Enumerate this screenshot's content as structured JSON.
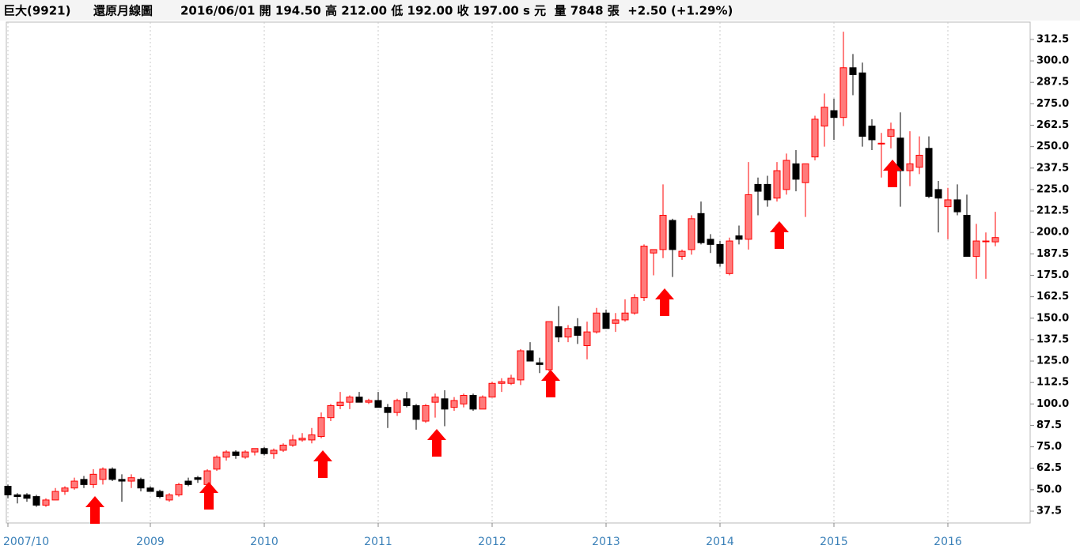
{
  "chart_data": {
    "type": "candlestick",
    "title": "巨大(9921)",
    "subtitle": "還原月線圖",
    "info": "2016/06/01 開 194.50 高 212.00 低 192.00 收 197.00 s 元  量 7848 張  +2.50 (+1.29%)",
    "categories": [
      "2007/10",
      null,
      null,
      null,
      null,
      null,
      null,
      null,
      null,
      null,
      null,
      null,
      null,
      null,
      null,
      "2009",
      null,
      null,
      null,
      null,
      null,
      null,
      null,
      null,
      null,
      null,
      null,
      "2010",
      null,
      null,
      null,
      null,
      null,
      null,
      null,
      null,
      null,
      null,
      null,
      "2011",
      null,
      null,
      null,
      null,
      null,
      null,
      null,
      null,
      null,
      null,
      null,
      "2012",
      null,
      null,
      null,
      null,
      null,
      null,
      null,
      null,
      null,
      null,
      null,
      "2013",
      null,
      null,
      null,
      null,
      null,
      null,
      null,
      null,
      null,
      null,
      null,
      "2014",
      null,
      null,
      null,
      null,
      null,
      null,
      null,
      null,
      null,
      null,
      null,
      "2015",
      null,
      null,
      null,
      null,
      null,
      null,
      null,
      null,
      null,
      null,
      null,
      "2016",
      null,
      null,
      null,
      null,
      null
    ],
    "open": [
      52,
      47,
      47,
      46,
      41,
      44,
      49,
      51,
      56,
      53,
      56,
      62,
      56,
      55,
      56,
      51,
      49,
      44,
      47,
      55,
      57,
      53,
      62,
      69,
      72,
      69,
      72,
      74,
      71,
      73,
      76,
      79,
      79,
      81,
      92,
      99,
      101,
      104,
      101,
      102,
      98,
      95,
      103,
      99,
      90,
      101,
      103,
      98,
      100,
      105,
      97,
      104,
      112,
      112,
      114,
      131,
      124,
      120,
      145,
      139,
      145,
      134,
      142,
      153,
      147,
      149,
      153,
      162,
      188,
      190,
      207,
      186,
      190,
      211,
      196,
      193,
      176,
      198,
      196,
      228,
      228,
      220,
      225,
      240,
      229,
      244,
      262,
      271,
      267,
      296,
      293,
      262,
      252,
      256,
      255,
      236,
      238,
      249,
      225,
      215,
      219,
      210,
      186,
      195,
      194.5
    ],
    "high": [
      53,
      48,
      48,
      47,
      45,
      51,
      52,
      57,
      58,
      62,
      63,
      63,
      59,
      59,
      57,
      52,
      50,
      48,
      54,
      57,
      58,
      62,
      70,
      73,
      73,
      73,
      74,
      75,
      74,
      77,
      82,
      83,
      86,
      95,
      100,
      107,
      105,
      107,
      103,
      107,
      100,
      103,
      107,
      100,
      100,
      106,
      108,
      104,
      106,
      106,
      105,
      113,
      115,
      117,
      132,
      136,
      127,
      148,
      157,
      146,
      150,
      148,
      156,
      155,
      153,
      161,
      164,
      193,
      190,
      228,
      208,
      190,
      210,
      218,
      199,
      195,
      197,
      204,
      241,
      232,
      233,
      241,
      246,
      248,
      240,
      268,
      281,
      278,
      317,
      304,
      299,
      266,
      258,
      264,
      270,
      259,
      256,
      256,
      230,
      226,
      228,
      222,
      205,
      200,
      212
    ],
    "low": [
      45,
      42,
      43,
      40,
      40,
      44,
      47,
      50,
      51,
      51,
      53,
      55,
      43,
      51,
      49,
      49,
      45,
      43,
      46,
      52,
      54,
      52,
      61,
      67,
      68,
      68,
      70,
      70,
      68,
      72,
      75,
      78,
      77,
      80,
      90,
      97,
      97,
      101,
      100,
      98,
      86,
      93,
      98,
      85,
      89,
      92,
      87,
      96,
      98,
      96,
      97,
      104,
      107,
      111,
      111,
      125,
      118,
      119,
      136,
      136,
      135,
      126,
      141,
      144,
      142,
      148,
      152,
      160,
      175,
      185,
      174,
      184,
      187,
      193,
      188,
      180,
      175,
      193,
      190,
      210,
      215,
      218,
      222,
      224,
      209,
      242,
      250,
      254,
      262,
      280,
      250,
      248,
      232,
      249,
      215,
      227,
      234,
      220,
      200,
      196,
      210,
      186,
      173,
      173,
      192
    ],
    "close": [
      47,
      46,
      45,
      41,
      44,
      49,
      51,
      55,
      53,
      59,
      62,
      56,
      55,
      57,
      51,
      49,
      46,
      47,
      53,
      53,
      56,
      61,
      69,
      72,
      70,
      72,
      74,
      71,
      73,
      76,
      79,
      80,
      82,
      92,
      99,
      101,
      104,
      101,
      102,
      98,
      95,
      102,
      99,
      91,
      99,
      104,
      97,
      102,
      105,
      97,
      104,
      112,
      113,
      115,
      131,
      125,
      123,
      148,
      139,
      144,
      140,
      142,
      153,
      144,
      149,
      153,
      162,
      192,
      190,
      210,
      190,
      189,
      208,
      194,
      193,
      182,
      195,
      196,
      222,
      224,
      219,
      236,
      242,
      231,
      240,
      266,
      273,
      267,
      296,
      292,
      256,
      254,
      252,
      260,
      236,
      240,
      245,
      221,
      220,
      219,
      212,
      186,
      195,
      195,
      197
    ],
    "up_color": "#ff7b7b",
    "up_stroke": "#ff0000",
    "down_color": "#000000",
    "ylim": [
      30.6,
      322.6
    ],
    "yticks": [
      37.5,
      {
        "value": 50,
        "label": "50.0"
      },
      62.5,
      {
        "value": 75,
        "label": "75.0"
      },
      87.5,
      {
        "value": 100,
        "label": "100.0"
      },
      112.5,
      {
        "value": 125,
        "label": "125.0"
      },
      137.5,
      {
        "value": 150,
        "label": "150.0"
      },
      162.5,
      {
        "value": 175,
        "label": "175.0"
      },
      187.5,
      {
        "value": 200,
        "label": "200.0"
      },
      212.5,
      {
        "value": 225,
        "label": "225.0"
      },
      237.5,
      {
        "value": 250,
        "label": "250.0"
      },
      262.5,
      {
        "value": 275,
        "label": "275.0"
      },
      287.5,
      {
        "value": 300,
        "label": "300.0"
      },
      312.5
    ],
    "grid": true
  }
}
